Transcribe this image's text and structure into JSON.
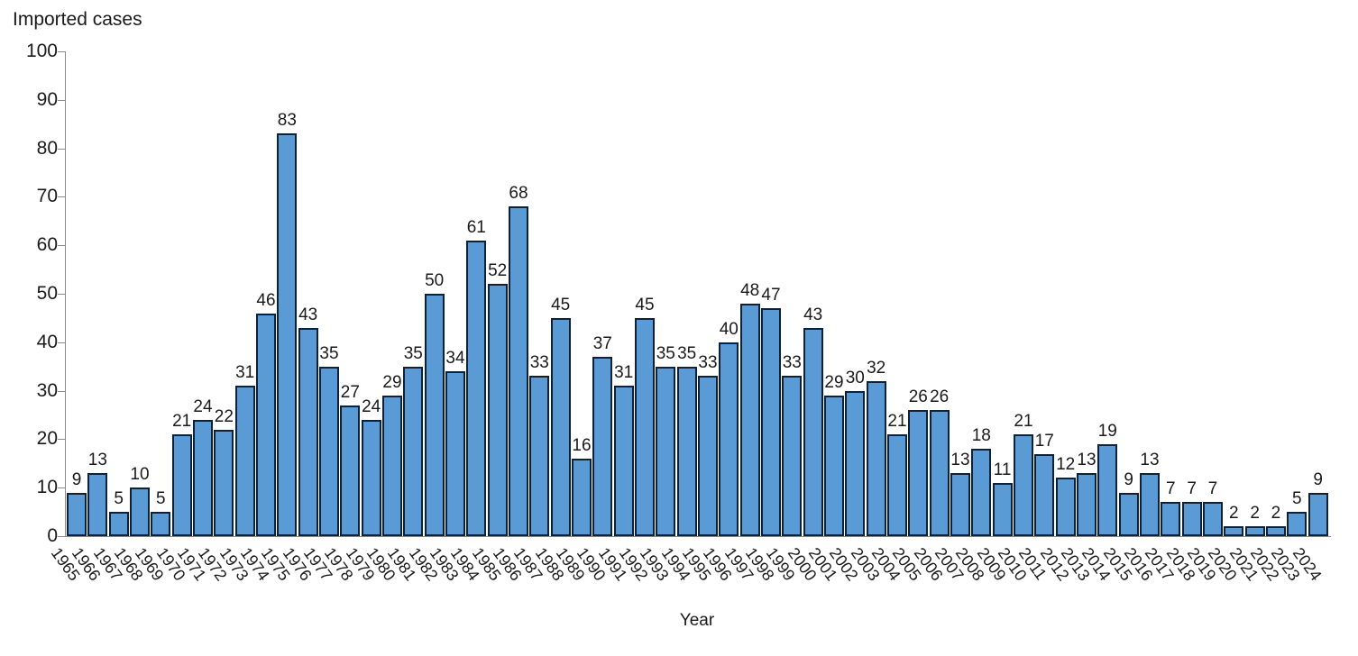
{
  "chart_data": {
    "type": "bar",
    "title": "Imported cases",
    "xlabel": "Year",
    "ylabel": "Imported cases",
    "categories": [
      "1965",
      "1966",
      "1967",
      "1968",
      "1969",
      "1970",
      "1971",
      "1972",
      "1973",
      "1974",
      "1975",
      "1976",
      "1977",
      "1978",
      "1979",
      "1980",
      "1981",
      "1982",
      "1983",
      "1984",
      "1985",
      "1986",
      "1987",
      "1988",
      "1989",
      "1990",
      "1991",
      "1992",
      "1993",
      "1994",
      "1995",
      "1996",
      "1997",
      "1998",
      "1999",
      "2000",
      "2001",
      "2002",
      "2003",
      "2004",
      "2005",
      "2006",
      "2007",
      "2008",
      "2009",
      "2010",
      "2011",
      "2012",
      "2013",
      "2014",
      "2015",
      "2016",
      "2017",
      "2018",
      "2019",
      "2020",
      "2021",
      "2022",
      "2023",
      "2024"
    ],
    "values": [
      9,
      13,
      5,
      10,
      5,
      21,
      24,
      22,
      31,
      46,
      83,
      43,
      35,
      27,
      24,
      29,
      35,
      50,
      34,
      61,
      52,
      68,
      33,
      45,
      16,
      37,
      31,
      45,
      35,
      35,
      33,
      40,
      48,
      47,
      33,
      43,
      29,
      30,
      32,
      21,
      26,
      26,
      13,
      18,
      11,
      21,
      17,
      12,
      13,
      19,
      9,
      13,
      7,
      7,
      7,
      2,
      2,
      2,
      5,
      9
    ],
    "ylim": [
      0,
      100
    ],
    "yticks": [
      0,
      10,
      20,
      30,
      40,
      50,
      60,
      70,
      80,
      90,
      100
    ],
    "data_labels": true,
    "grid": false,
    "legend": "none",
    "bar_color": "#5B9BD5",
    "bar_border_color": "#0F2138",
    "axis_color": "#8A8A8A",
    "text_color": "#1A1A1A"
  }
}
